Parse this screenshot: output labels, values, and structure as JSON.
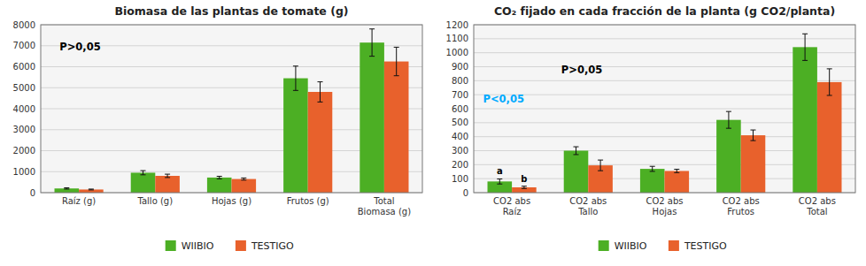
{
  "chart_data": [
    {
      "type": "bar",
      "title": "Biomasa de las plantas de tomate (g)",
      "categories": [
        "Raíz (g)",
        "Tallo (g)",
        "Hojas (g)",
        "Frutos (g)",
        "Total\nBiomasa (g)"
      ],
      "series": [
        {
          "name": "WIIBIO",
          "color": "#4CAF24",
          "values": [
            200,
            950,
            720,
            5450,
            7150
          ],
          "errors": [
            30,
            100,
            60,
            580,
            650
          ]
        },
        {
          "name": "TESTIGO",
          "color": "#E8612C",
          "values": [
            150,
            800,
            650,
            4800,
            6250
          ],
          "errors": [
            20,
            80,
            50,
            480,
            680
          ]
        }
      ],
      "annotations": [
        {
          "text": "P>0,05",
          "color": "#000000"
        }
      ],
      "ylim": [
        0,
        8000
      ],
      "yticks": [
        0,
        1000,
        2000,
        3000,
        4000,
        5000,
        6000,
        7000,
        8000
      ],
      "grid": true,
      "legend": "bottom"
    },
    {
      "type": "bar",
      "title": "CO₂ fijado en cada fracción de la planta (g CO2/planta)",
      "categories": [
        "CO2 abs\nRaíz",
        "CO2 abs\nTallo",
        "CO2 abs\nHojas",
        "CO2 abs\nFrutos",
        "CO2 abs\nTotal"
      ],
      "series": [
        {
          "name": "WIIBIO",
          "color": "#4CAF24",
          "values": [
            80,
            300,
            170,
            520,
            1040
          ],
          "errors": [
            18,
            28,
            18,
            60,
            95
          ]
        },
        {
          "name": "TESTIGO",
          "color": "#E8612C",
          "values": [
            38,
            195,
            155,
            410,
            790
          ],
          "errors": [
            8,
            38,
            12,
            38,
            95
          ]
        }
      ],
      "annotations": [
        {
          "text": "P<0,05",
          "color": "#00AAFF"
        },
        {
          "text": "P>0,05",
          "color": "#000000"
        },
        {
          "text": "a",
          "series": 0,
          "index": 0
        },
        {
          "text": "b",
          "series": 1,
          "index": 0
        }
      ],
      "ylim": [
        0,
        1200
      ],
      "yticks": [
        0,
        100,
        200,
        300,
        400,
        500,
        600,
        700,
        800,
        900,
        1000,
        1100,
        1200
      ],
      "grid": true,
      "legend": "bottom"
    }
  ]
}
